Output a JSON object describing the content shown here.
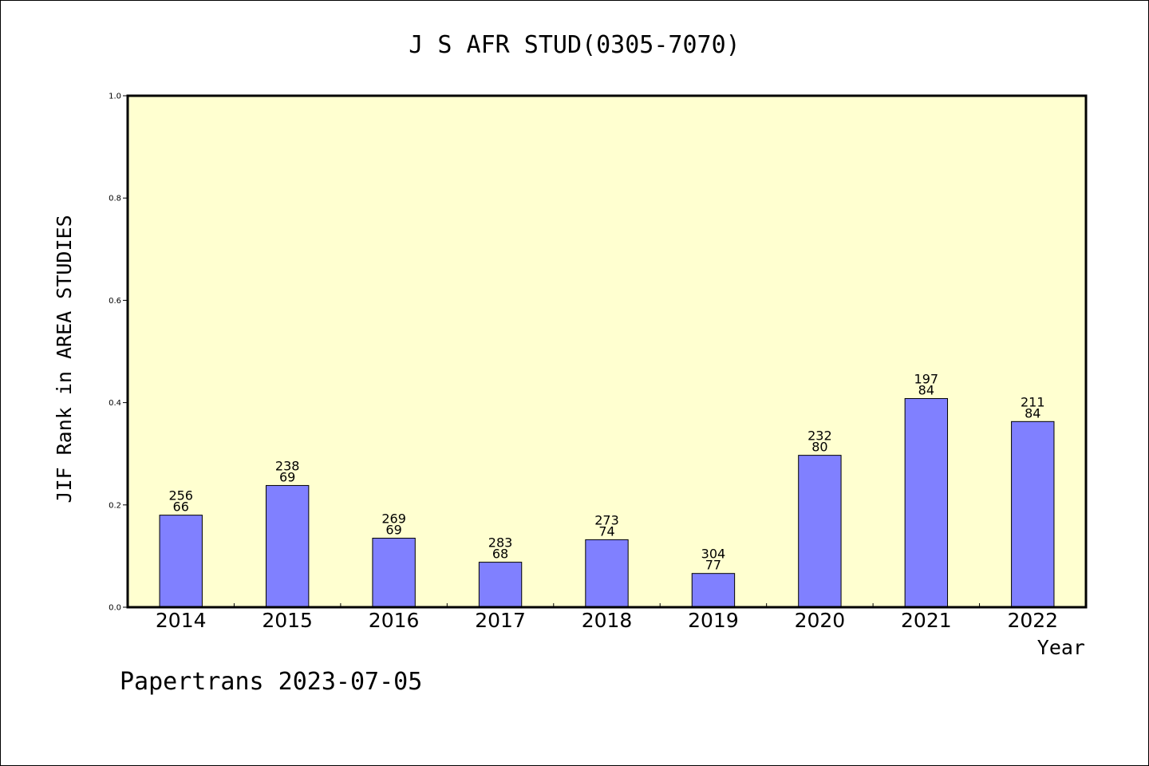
{
  "chart_data": {
    "type": "bar",
    "title": "J S AFR STUD(0305-7070)",
    "xlabel": "Year",
    "ylabel": "JIF Rank in AREA STUDIES",
    "ylim": [
      0,
      1.0
    ],
    "yticks": [
      "0.0",
      "0.2",
      "0.4",
      "0.6",
      "0.8",
      "1.0"
    ],
    "grid": false,
    "categories": [
      "2014",
      "2015",
      "2016",
      "2017",
      "2018",
      "2019",
      "2020",
      "2021",
      "2022"
    ],
    "values": [
      0.18,
      0.238,
      0.135,
      0.088,
      0.132,
      0.066,
      0.297,
      0.408,
      0.363
    ],
    "totals": [
      "256",
      "238",
      "269",
      "283",
      "273",
      "304",
      "232",
      "197",
      "211"
    ],
    "ranks": [
      "66",
      "69",
      "69",
      "68",
      "74",
      "77",
      "80",
      "84",
      "84"
    ],
    "colors": {
      "plot_background": "#ffffd0",
      "bar_fill": "#8080ff",
      "bar_stroke": "#000000",
      "axis": "#000000"
    }
  },
  "footer": {
    "text": "Papertrans 2023-07-05"
  }
}
